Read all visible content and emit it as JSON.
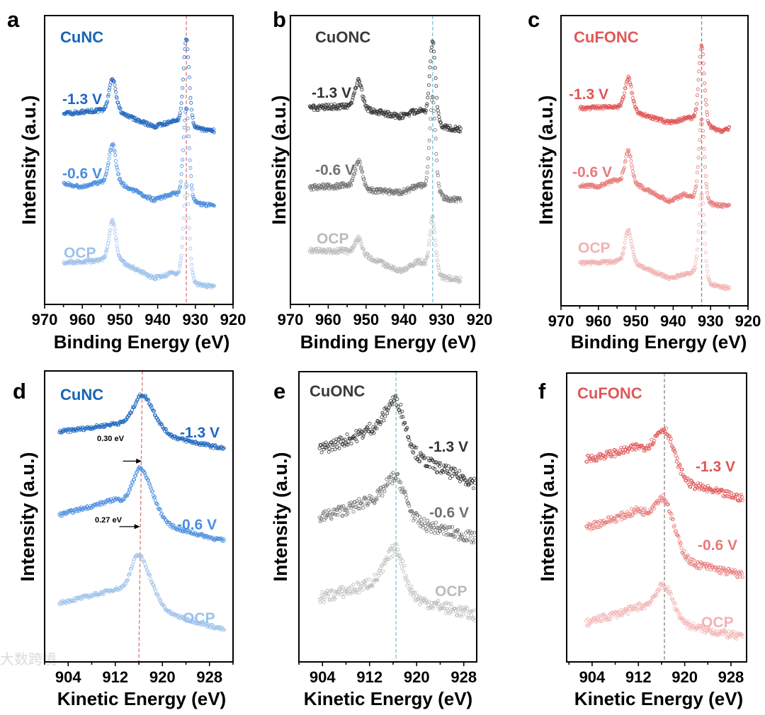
{
  "watermark": "大数跨境",
  "chart_data": [
    {
      "panel": "a",
      "type": "scatter",
      "title": "CuNC",
      "title_color": "#1565b5",
      "xlabel": "Binding Energy (eV)",
      "ylabel": "Intensity (a.u.)",
      "xlim": [
        970,
        920
      ],
      "ylim": [
        0,
        10
      ],
      "xticks": [
        970,
        960,
        950,
        940,
        930,
        920
      ],
      "minor_step": 5,
      "x_range": [
        965,
        925
      ],
      "noise": 0.06,
      "reference_line": {
        "x_top": 932.4,
        "x_bottom": 932.4,
        "color": "#d97a7a"
      },
      "series": [
        {
          "name": "-1.3 V",
          "color": "#1f66c0",
          "background": [
            [
              965,
              6.6
            ],
            [
              956,
              6.7
            ],
            [
              949,
              6.55
            ],
            [
              941,
              6.15
            ],
            [
              936,
              6.3
            ],
            [
              931,
              6.05
            ],
            [
              925,
              6.0
            ]
          ],
          "peaks": [
            [
              952,
              1.2,
              1.1
            ],
            [
              932.4,
              3.1,
              0.9
            ]
          ]
        },
        {
          "name": "-0.6 V",
          "color": "#4a8ee0",
          "background": [
            [
              965,
              4.2
            ],
            [
              960,
              4.05
            ],
            [
              956,
              4.2
            ],
            [
              949,
              4.1
            ],
            [
              941,
              3.6
            ],
            [
              936,
              3.8
            ],
            [
              931,
              3.45
            ],
            [
              925,
              3.4
            ]
          ],
          "peaks": [
            [
              952,
              1.4,
              1.1
            ],
            [
              932.4,
              3.3,
              0.9
            ]
          ]
        },
        {
          "name": "OCP",
          "color": "#9cc2ec",
          "background": [
            [
              965,
              1.45
            ],
            [
              956,
              1.5
            ],
            [
              949,
              1.4
            ],
            [
              941,
              0.9
            ],
            [
              936,
              1.05
            ],
            [
              931,
              0.65
            ],
            [
              925,
              0.6
            ]
          ],
          "peaks": [
            [
              952,
              1.45,
              1.1
            ],
            [
              932.4,
              3.4,
              0.9
            ]
          ]
        }
      ]
    },
    {
      "panel": "b",
      "type": "scatter",
      "title": "CuONC",
      "title_color": "#3a3a3a",
      "xlabel": "Binding Energy (eV)",
      "ylabel": "Intensity (a.u.)",
      "xlim": [
        970,
        920
      ],
      "ylim": [
        0,
        10
      ],
      "xticks": [
        970,
        960,
        950,
        940,
        930,
        920
      ],
      "minor_step": 5,
      "x_range": [
        965,
        925
      ],
      "noise": 0.09,
      "reference_line": {
        "x_top": 932.4,
        "x_bottom": 932.4,
        "color": "#7cc4cc"
      },
      "series": [
        {
          "name": "-1.3 V",
          "color": "#333333",
          "background": [
            [
              965,
              6.8
            ],
            [
              956,
              6.85
            ],
            [
              949,
              6.7
            ],
            [
              941,
              6.5
            ],
            [
              936,
              6.7
            ],
            [
              931,
              6.1
            ],
            [
              925,
              6.05
            ]
          ],
          "peaks": [
            [
              952,
              1.0,
              1.1
            ],
            [
              932.4,
              2.85,
              0.9
            ]
          ]
        },
        {
          "name": "-0.6 V",
          "color": "#707070",
          "background": [
            [
              965,
              4.05
            ],
            [
              956,
              4.1
            ],
            [
              949,
              3.95
            ],
            [
              941,
              3.85
            ],
            [
              936,
              4.1
            ],
            [
              931,
              3.65
            ],
            [
              925,
              3.6
            ]
          ],
          "peaks": [
            [
              952,
              0.95,
              1.1
            ],
            [
              932.4,
              3.4,
              0.9
            ]
          ]
        },
        {
          "name": "OCP",
          "color": "#bbbbbb",
          "background": [
            [
              965,
              1.85
            ],
            [
              956,
              1.85
            ],
            [
              949,
              1.6
            ],
            [
              941,
              1.15
            ],
            [
              936,
              1.5
            ],
            [
              931,
              0.9
            ],
            [
              925,
              0.85
            ]
          ],
          "peaks": [
            [
              952,
              0.6,
              1.1
            ],
            [
              932.4,
              1.9,
              0.9
            ]
          ]
        }
      ]
    },
    {
      "panel": "c",
      "type": "scatter",
      "title": "CuFONC",
      "title_color": "#e05858",
      "xlabel": "Binding Energy (eV)",
      "ylabel": "Intensity (a.u.)",
      "xlim": [
        970,
        920
      ],
      "ylim": [
        0,
        10
      ],
      "xticks": [
        970,
        960,
        950,
        940,
        930,
        920
      ],
      "minor_step": 5,
      "x_range": [
        965,
        925
      ],
      "noise": 0.06,
      "reference_line": {
        "x_top": 932.4,
        "x_bottom": 932.4,
        "color": "#888888"
      },
      "series": [
        {
          "name": "-1.3 V",
          "color": "#e05555",
          "background": [
            [
              965,
              6.8
            ],
            [
              956,
              6.85
            ],
            [
              949,
              6.6
            ],
            [
              941,
              6.3
            ],
            [
              936,
              6.45
            ],
            [
              931,
              6.1
            ],
            [
              927,
              6.0
            ],
            [
              925,
              6.1
            ]
          ],
          "peaks": [
            [
              952,
              1.15,
              1.1
            ],
            [
              932.4,
              2.75,
              0.9
            ]
          ]
        },
        {
          "name": "-0.6 V",
          "color": "#e87a7a",
          "background": [
            [
              965,
              4.15
            ],
            [
              960,
              4.1
            ],
            [
              956,
              4.3
            ],
            [
              949,
              4.1
            ],
            [
              941,
              3.6
            ],
            [
              937,
              3.8
            ],
            [
              931,
              3.45
            ],
            [
              925,
              3.43
            ]
          ],
          "peaks": [
            [
              952,
              1.15,
              1.1
            ],
            [
              932.4,
              2.85,
              0.9
            ]
          ]
        },
        {
          "name": "OCP",
          "color": "#f2b2b2",
          "background": [
            [
              965,
              1.47
            ],
            [
              955,
              1.5
            ],
            [
              949,
              1.35
            ],
            [
              941,
              0.95
            ],
            [
              935,
              1.1
            ],
            [
              931,
              0.7
            ],
            [
              925,
              0.6
            ]
          ],
          "peaks": [
            [
              952,
              1.15,
              1.1
            ],
            [
              932.4,
              3.0,
              0.9
            ]
          ]
        }
      ]
    },
    {
      "panel": "d",
      "type": "scatter",
      "title": "CuNC",
      "title_color": "#1565b5",
      "xlabel": "Kinetic Energy (eV)",
      "ylabel": "Intensity (a.u.)",
      "xlim": [
        900,
        932
      ],
      "ylim": [
        0,
        10
      ],
      "xticks": [
        904,
        912,
        920,
        928
      ],
      "minor_step": 4,
      "x_range": [
        902.5,
        930.5
      ],
      "noise": 0.06,
      "reference_line": {
        "x_top": 916.6,
        "x_bottom": 916.0,
        "color": "#d97a7a"
      },
      "annotations": [
        {
          "text": "0.30 eV",
          "arrow_from": 913.3,
          "arrow_to": 916.5,
          "y": 6.9
        },
        {
          "text": "0.27 eV",
          "arrow_from": 912.7,
          "arrow_to": 916.2,
          "y": 4.65
        }
      ],
      "series": [
        {
          "name": "-1.3 V",
          "color": "#1f66c0",
          "background": [
            [
              902.5,
              7.9
            ],
            [
              912,
              8.15
            ],
            [
              921,
              7.7
            ],
            [
              930.5,
              7.32
            ]
          ],
          "peaks": [
            [
              916.6,
              1.25,
              1.8,
              2.4
            ]
          ]
        },
        {
          "name": "-0.6 V",
          "color": "#4a8ee0",
          "background": [
            [
              902.5,
              5.05
            ],
            [
              912,
              5.55
            ],
            [
              921,
              4.6
            ],
            [
              930.5,
              4.15
            ]
          ],
          "peaks": [
            [
              916.3,
              1.55,
              1.6,
              2.4
            ]
          ]
        },
        {
          "name": "OCP",
          "color": "#9cc2ec",
          "background": [
            [
              902.5,
              2.02
            ],
            [
              912,
              2.45
            ],
            [
              921,
              1.6
            ],
            [
              930.5,
              1.1
            ]
          ],
          "peaks": [
            [
              916.0,
              1.6,
              1.6,
              2.4
            ]
          ]
        }
      ]
    },
    {
      "panel": "e",
      "type": "scatter",
      "title": "CuONC",
      "title_color": "#3a3a3a",
      "xlabel": "Kinetic Energy (eV)",
      "ylabel": "Intensity (a.u.)",
      "xlim": [
        900,
        930.2
      ],
      "ylim": [
        0,
        10
      ],
      "xticks": [
        904,
        912,
        920,
        928
      ],
      "minor_step": 4,
      "x_range": [
        903.5,
        930
      ],
      "noise": 0.2,
      "reference_line": {
        "x_top": 916.5,
        "x_bottom": 916.5,
        "color": "#7cc4cc"
      },
      "series": [
        {
          "name": "-1.3 V",
          "color": "#333333",
          "background": [
            [
              903.5,
              7.3
            ],
            [
              912,
              7.9
            ],
            [
              921,
              6.9
            ],
            [
              930,
              6.15
            ]
          ],
          "peaks": [
            [
              916.5,
              1.6,
              2.2,
              1.8
            ]
          ]
        },
        {
          "name": "-0.6 V",
          "color": "#707070",
          "background": [
            [
              903.5,
              4.95
            ],
            [
              912,
              5.5
            ],
            [
              921,
              4.7
            ],
            [
              930,
              4.25
            ]
          ],
          "peaks": [
            [
              916.5,
              1.25,
              2.2,
              1.8
            ]
          ]
        },
        {
          "name": "OCP",
          "color": "#bbbbbb",
          "background": [
            [
              903.5,
              2.2
            ],
            [
              912,
              2.6
            ],
            [
              921,
              2.05
            ],
            [
              930,
              1.6
            ]
          ],
          "peaks": [
            [
              916.5,
              1.55,
              2.2,
              1.6
            ]
          ]
        }
      ]
    },
    {
      "panel": "f",
      "type": "scatter",
      "title": "CuFONC",
      "title_color": "#e05858",
      "xlabel": "Kinetic Energy (eV)",
      "ylabel": "Intensity (a.u.)",
      "xlim": [
        899.6,
        930.7
      ],
      "ylim": [
        0,
        10
      ],
      "xticks": [
        904,
        912,
        920,
        928
      ],
      "minor_step": 4,
      "x_range": [
        903,
        930
      ],
      "noise": 0.13,
      "reference_line": {
        "x_top": 916.5,
        "x_bottom": 916.5,
        "color": "#888888"
      },
      "series": [
        {
          "name": "-1.3 V",
          "color": "#e05555",
          "background": [
            [
              903,
              7.0
            ],
            [
              912,
              7.4
            ],
            [
              921,
              6.1
            ],
            [
              930,
              5.65
            ]
          ],
          "peaks": [
            [
              916.6,
              1.3,
              2.0,
              1.8
            ]
          ]
        },
        {
          "name": "-0.6 V",
          "color": "#e87a7a",
          "background": [
            [
              903,
              4.65
            ],
            [
              912,
              5.2
            ],
            [
              921,
              3.4
            ],
            [
              930,
              3.0
            ]
          ],
          "peaks": [
            [
              916.5,
              1.35,
              2.0,
              1.8
            ]
          ]
        },
        {
          "name": "OCP",
          "color": "#f2b2b2",
          "background": [
            [
              903,
              1.35
            ],
            [
              912,
              1.85
            ],
            [
              921,
              1.2
            ],
            [
              930,
              0.85
            ]
          ],
          "peaks": [
            [
              916.5,
              1.1,
              2.0,
              1.8
            ]
          ]
        }
      ]
    }
  ]
}
